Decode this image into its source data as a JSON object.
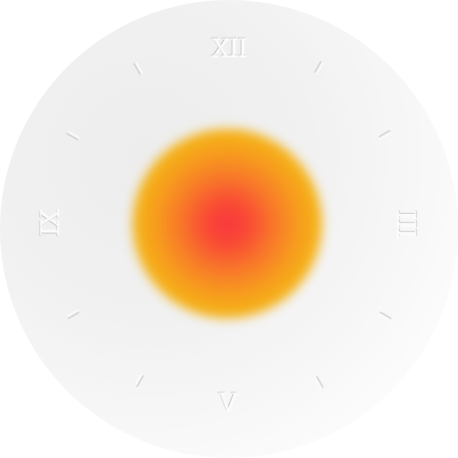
{
  "clock": {
    "numerals": {
      "top": "XII",
      "right": "III",
      "bottom": "V",
      "left": "IX"
    },
    "colors": {
      "face": "#f2f2f2",
      "glow_center": "#f9373e",
      "glow_mid": "#f8762a",
      "glow_outer": "#f4b317"
    },
    "tick_count": 8
  }
}
